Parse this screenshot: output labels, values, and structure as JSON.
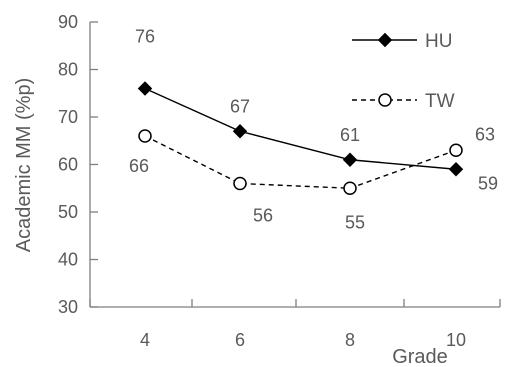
{
  "chart_data": {
    "type": "line",
    "title": "",
    "xlabel": "Grade",
    "ylabel": "Academic MM (%p)",
    "categories": [
      "4",
      "6",
      "8",
      "10"
    ],
    "ylim": [
      30,
      90
    ],
    "yticks": [
      30,
      40,
      50,
      60,
      70,
      80,
      90
    ],
    "grid": false,
    "legend_position": "top-right",
    "series": [
      {
        "name": "HU",
        "values": [
          76,
          67,
          61,
          59
        ],
        "marker": "filled-diamond",
        "line_style": "solid",
        "color": "#000000"
      },
      {
        "name": "TW",
        "values": [
          66,
          56,
          55,
          63
        ],
        "marker": "open-circle",
        "line_style": "dashed",
        "color": "#000000"
      }
    ]
  }
}
